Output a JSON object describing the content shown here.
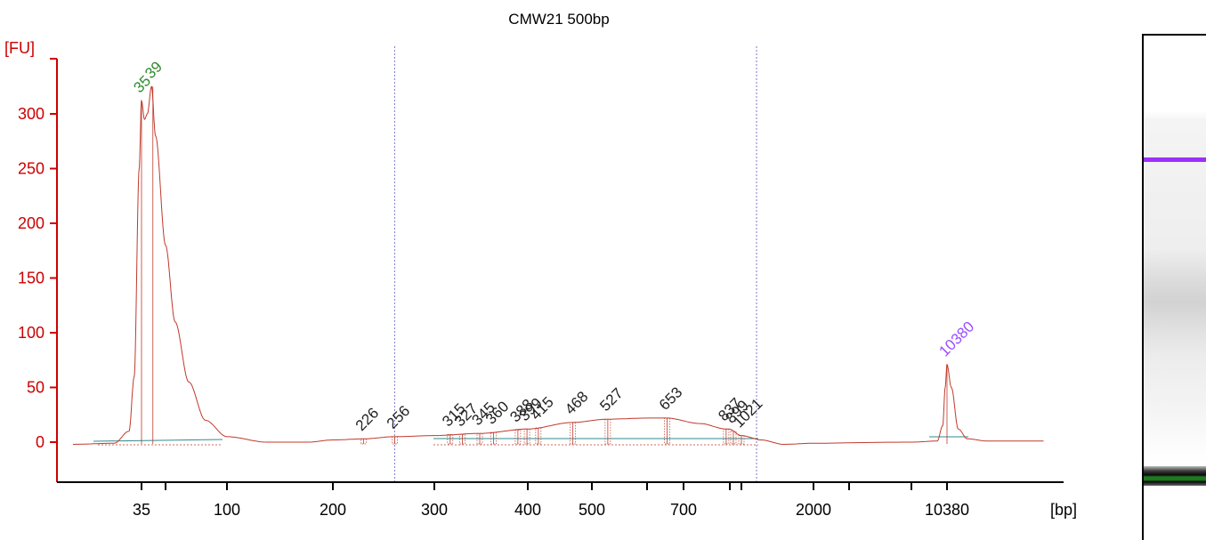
{
  "chart_data": {
    "type": "line",
    "title": "CMW21 500bp",
    "ylabel": "[FU]",
    "xlabel": "[bp]",
    "ylim": [
      -35,
      350
    ],
    "yticks": [
      0,
      50,
      100,
      150,
      200,
      250,
      300
    ],
    "x_tick_labels": [
      "35",
      "100",
      "200",
      "300",
      "400",
      "500",
      "700",
      "2000",
      "10380"
    ],
    "x_minor_ticks": [
      35,
      44,
      100,
      200,
      300,
      400,
      500,
      600,
      700,
      850,
      1021,
      2000,
      3000,
      5000,
      10380
    ],
    "region_markers_bp": [
      256,
      1150
    ],
    "series": [
      {
        "values": [
          {
            "bp": 15,
            "fu": -2
          },
          {
            "bp": 25,
            "fu": -1
          },
          {
            "bp": 30,
            "fu": 10
          },
          {
            "bp": 32,
            "fu": 60
          },
          {
            "bp": 34,
            "fu": 250
          },
          {
            "bp": 35,
            "fu": 312
          },
          {
            "bp": 36,
            "fu": 295
          },
          {
            "bp": 37,
            "fu": 300
          },
          {
            "bp": 38.5,
            "fu": 325
          },
          {
            "bp": 40,
            "fu": 280
          },
          {
            "bp": 44,
            "fu": 180
          },
          {
            "bp": 50,
            "fu": 110
          },
          {
            "bp": 60,
            "fu": 55
          },
          {
            "bp": 75,
            "fu": 20
          },
          {
            "bp": 100,
            "fu": 5
          },
          {
            "bp": 130,
            "fu": 0
          },
          {
            "bp": 170,
            "fu": 0
          },
          {
            "bp": 200,
            "fu": 2
          },
          {
            "bp": 226,
            "fu": 3
          },
          {
            "bp": 256,
            "fu": 5
          },
          {
            "bp": 300,
            "fu": 6
          },
          {
            "bp": 345,
            "fu": 8
          },
          {
            "bp": 400,
            "fu": 12
          },
          {
            "bp": 468,
            "fu": 18
          },
          {
            "bp": 527,
            "fu": 21
          },
          {
            "bp": 600,
            "fu": 22
          },
          {
            "bp": 653,
            "fu": 22
          },
          {
            "bp": 750,
            "fu": 17
          },
          {
            "bp": 837,
            "fu": 12
          },
          {
            "bp": 1021,
            "fu": 6
          },
          {
            "bp": 1200,
            "fu": 2
          },
          {
            "bp": 1500,
            "fu": -2
          },
          {
            "bp": 2000,
            "fu": -1
          },
          {
            "bp": 5000,
            "fu": 0
          },
          {
            "bp": 8500,
            "fu": 1
          },
          {
            "bp": 9500,
            "fu": 15
          },
          {
            "bp": 10000,
            "fu": 50
          },
          {
            "bp": 10380,
            "fu": 71
          },
          {
            "bp": 10800,
            "fu": 50
          },
          {
            "bp": 11500,
            "fu": 12
          },
          {
            "bp": 12500,
            "fu": 3
          },
          {
            "bp": 15000,
            "fu": 1
          },
          {
            "bp": 25000,
            "fu": 1
          }
        ]
      }
    ],
    "peaks": [
      {
        "bp": 35,
        "label": "35",
        "color": "#2e8b2e",
        "fu": 312
      },
      {
        "bp": 39,
        "label": "39",
        "color": "#2e8b2e",
        "fu": 325
      },
      {
        "bp": 226,
        "label": "226",
        "color": "#222222",
        "fu": 3
      },
      {
        "bp": 256,
        "label": "256",
        "color": "#222222",
        "fu": 5
      },
      {
        "bp": 315,
        "label": "315",
        "color": "#222222",
        "fu": 7
      },
      {
        "bp": 327,
        "label": "327",
        "color": "#222222",
        "fu": 7
      },
      {
        "bp": 345,
        "label": "345",
        "color": "#222222",
        "fu": 8
      },
      {
        "bp": 360,
        "label": "360",
        "color": "#222222",
        "fu": 9
      },
      {
        "bp": 388,
        "label": "388",
        "color": "#222222",
        "fu": 11
      },
      {
        "bp": 399,
        "label": "399",
        "color": "#222222",
        "fu": 12
      },
      {
        "bp": 415,
        "label": "415",
        "color": "#222222",
        "fu": 13
      },
      {
        "bp": 468,
        "label": "468",
        "color": "#222222",
        "fu": 18
      },
      {
        "bp": 527,
        "label": "527",
        "color": "#222222",
        "fu": 21
      },
      {
        "bp": 653,
        "label": "653",
        "color": "#222222",
        "fu": 22
      },
      {
        "bp": 837,
        "label": "837",
        "color": "#222222",
        "fu": 12
      },
      {
        "bp": 899,
        "label": "899",
        "color": "#222222",
        "fu": 10
      },
      {
        "bp": 1021,
        "label": "1021",
        "color": "#222222",
        "fu": 6
      },
      {
        "bp": 10380,
        "label": "10380",
        "color": "#9b4dff",
        "fu": 71
      }
    ],
    "colors": {
      "axis": "#cc0000",
      "trace": "#c0392b",
      "marker_line": "#7a7acc",
      "baseline": "#2e8b8b",
      "upper_marker": "#9b30ff",
      "lower_marker": "#1a7a1a"
    }
  }
}
